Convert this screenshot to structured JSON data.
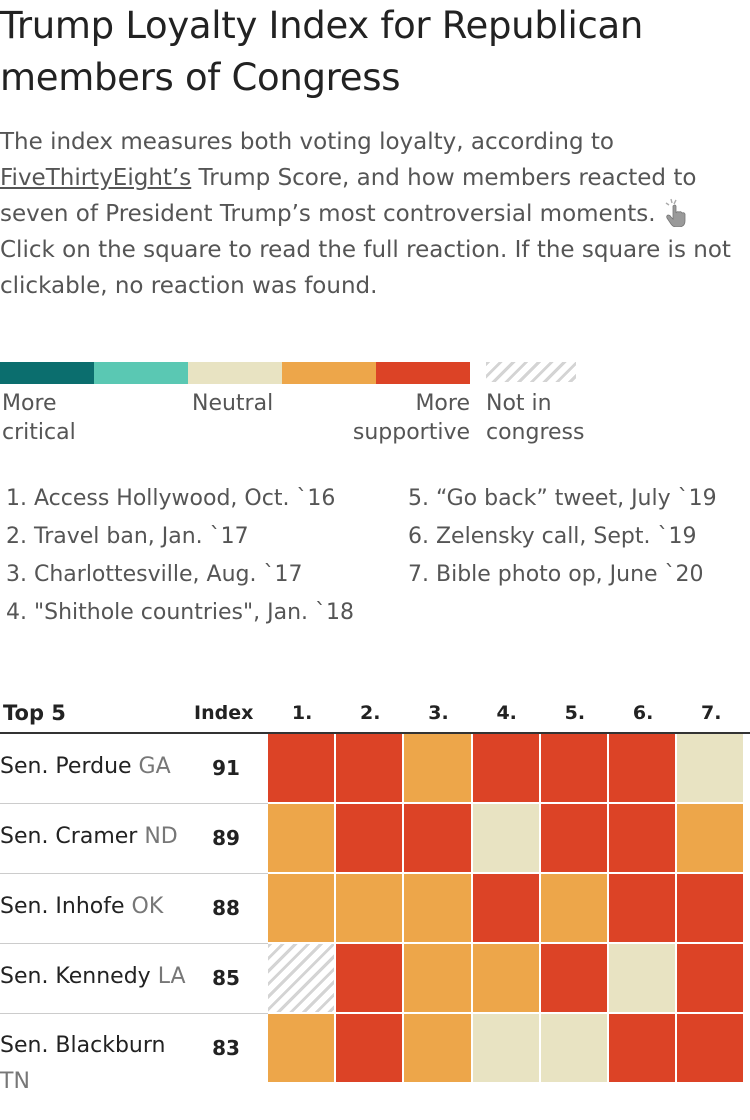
{
  "title": "Trump Loyalty Index for Republican members of Congress",
  "intro": {
    "part1": "The index measures both voting loyalty, according to ",
    "link": "FiveThirtyEight’s",
    "part2": " Trump Score, and how members reacted to seven of President Trump’s most controversial moments. ",
    "part3": "Click on the square to read the full reaction. If the square is not clickable, no reaction was found.",
    "icon": "pointing-hand-icon"
  },
  "legend": {
    "colors": [
      "#0b6e6e",
      "#5ac8b3",
      "#e8e3c2",
      "#eda64a",
      "#dc4326"
    ],
    "not_in_congress_icon": "hatch-pattern",
    "more_critical": [
      "More",
      "critical"
    ],
    "neutral": "Neutral",
    "more_supportive": [
      "More",
      "supportive"
    ],
    "not_in_congress": [
      "Not in",
      "congress"
    ]
  },
  "events_left": [
    "1. Access Hollywood, Oct. `16",
    "2. Travel ban, Jan. `17",
    "3. Charlottesville, Aug. `17",
    "4. \"Shithole countries\", Jan. `18"
  ],
  "events_right": [
    "5. “Go back” tweet, July `19",
    "6. Zelensky call, Sept. `19",
    "7. Bible photo op, June `20"
  ],
  "table": {
    "group_label": "Top 5",
    "index_label": "Index",
    "columns": [
      "1.",
      "2.",
      "3.",
      "4.",
      "5.",
      "6.",
      "7."
    ]
  },
  "chart_data": {
    "type": "heatmap",
    "title": "Trump Loyalty Index for Republican members of Congress",
    "columns": [
      "1.",
      "2.",
      "3.",
      "4.",
      "5.",
      "6.",
      "7."
    ],
    "scale": [
      "More critical",
      "Critical",
      "Neutral",
      "Supportive",
      "More supportive",
      "Not in congress"
    ],
    "rows": [
      {
        "prefix": "Sen. Perdue",
        "state": "GA",
        "index": 91,
        "values": [
          "More supportive",
          "More supportive",
          "Supportive",
          "More supportive",
          "More supportive",
          "More supportive",
          "Neutral"
        ]
      },
      {
        "prefix": "Sen. Cramer",
        "state": "ND",
        "index": 89,
        "values": [
          "Supportive",
          "More supportive",
          "More supportive",
          "Neutral",
          "More supportive",
          "More supportive",
          "Supportive"
        ]
      },
      {
        "prefix": "Sen. Inhofe",
        "state": "OK",
        "index": 88,
        "values": [
          "Supportive",
          "Supportive",
          "Supportive",
          "More supportive",
          "Supportive",
          "More supportive",
          "More supportive"
        ]
      },
      {
        "prefix": "Sen. Kennedy",
        "state": "LA",
        "index": 85,
        "values": [
          "Not in congress",
          "More supportive",
          "Supportive",
          "Supportive",
          "More supportive",
          "Neutral",
          "More supportive"
        ]
      },
      {
        "prefix": "Sen. Blackburn",
        "state": "TN",
        "index": 83,
        "values": [
          "Supportive",
          "More supportive",
          "Supportive",
          "Neutral",
          "Neutral",
          "More supportive",
          "More supportive"
        ]
      }
    ]
  }
}
